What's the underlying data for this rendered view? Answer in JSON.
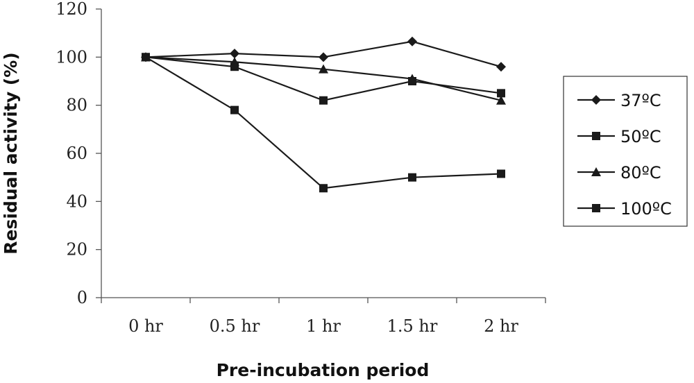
{
  "chart_data": {
    "type": "line",
    "categories": [
      "0 hr",
      "0.5 hr",
      "1 hr",
      "1.5 hr",
      "2 hr"
    ],
    "series": [
      {
        "name": "37ºC",
        "marker": "diamond",
        "values": [
          100,
          101.5,
          100,
          106.5,
          96
        ]
      },
      {
        "name": "50ºC",
        "marker": "square",
        "values": [
          100,
          96,
          82,
          90,
          85
        ]
      },
      {
        "name": "80ºC",
        "marker": "triangle",
        "values": [
          100,
          98,
          95,
          91,
          82
        ]
      },
      {
        "name": "100ºC",
        "marker": "square",
        "values": [
          100,
          78,
          45.5,
          50,
          51.5
        ]
      }
    ],
    "xlabel": "Pre-incubation period",
    "ylabel": "Residual activity (%)",
    "ylim": [
      0,
      120
    ],
    "yticks": [
      0,
      20,
      40,
      60,
      80,
      100,
      120
    ],
    "grid": false,
    "legend": "right",
    "colors": {
      "line": "#1a1a1a",
      "axis": "#555555"
    }
  }
}
